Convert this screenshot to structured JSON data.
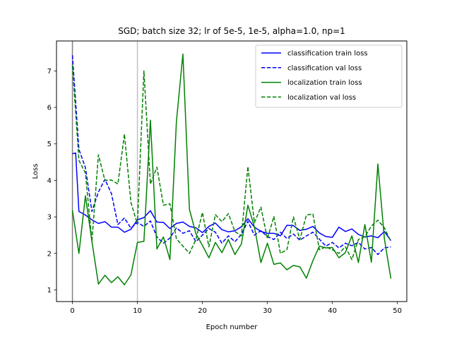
{
  "chart_data": {
    "type": "line",
    "title": "SGD; batch size 32; lr of 5e-5, 1e-5, alpha=1.0, np=1",
    "xlabel": "Epoch number",
    "ylabel": "Loss",
    "xlim": [
      -2.45,
      51.45
    ],
    "ylim": [
      0.68,
      7.82
    ],
    "xticks": [
      0,
      10,
      20,
      30,
      40,
      50
    ],
    "yticks": [
      1,
      2,
      3,
      4,
      5,
      6,
      7
    ],
    "grid": false,
    "legend_position": "top-right",
    "vlines": [
      {
        "x": 0,
        "color": "#808080"
      },
      {
        "x": 10,
        "color": "#c0c0c0"
      }
    ],
    "series": [
      {
        "name": "classification train loss",
        "color": "#0000ff",
        "dash": "solid",
        "x": [
          0,
          0.5,
          1,
          2,
          3,
          4,
          5,
          6,
          7,
          8,
          9,
          10,
          11,
          12,
          13,
          14,
          15,
          16,
          17,
          18,
          19,
          20,
          21,
          22,
          23,
          24,
          25,
          26,
          27,
          28,
          29,
          30,
          31,
          32,
          33,
          34,
          35,
          36,
          37,
          38,
          39,
          40,
          41,
          42,
          43,
          44,
          45,
          46,
          47,
          48,
          49
        ],
        "values": [
          4.73,
          4.75,
          3.15,
          3.05,
          2.92,
          2.82,
          2.87,
          2.72,
          2.72,
          2.58,
          2.66,
          2.92,
          2.98,
          3.17,
          2.86,
          2.85,
          2.68,
          2.82,
          2.86,
          2.74,
          2.7,
          2.57,
          2.74,
          2.83,
          2.65,
          2.59,
          2.62,
          2.73,
          2.95,
          2.72,
          2.6,
          2.55,
          2.55,
          2.48,
          2.77,
          2.76,
          2.63,
          2.66,
          2.74,
          2.56,
          2.46,
          2.44,
          2.72,
          2.6,
          2.67,
          2.52,
          2.45,
          2.48,
          2.43,
          2.6,
          2.35
        ]
      },
      {
        "name": "classification val loss",
        "color": "#0000ff",
        "dash": "dashed",
        "x": [
          0,
          1,
          2,
          3,
          4,
          5,
          6,
          7,
          8,
          9,
          10,
          11,
          12,
          13,
          14,
          15,
          16,
          17,
          18,
          19,
          20,
          21,
          22,
          23,
          24,
          25,
          26,
          27,
          28,
          29,
          30,
          31,
          32,
          33,
          34,
          35,
          36,
          37,
          38,
          39,
          40,
          41,
          42,
          43,
          44,
          45,
          46,
          47,
          48,
          49
        ],
        "values": [
          7.43,
          4.85,
          4.35,
          3.15,
          3.68,
          4.03,
          3.64,
          2.79,
          2.97,
          2.69,
          2.85,
          2.74,
          2.89,
          2.45,
          2.28,
          2.42,
          2.7,
          2.55,
          2.62,
          2.32,
          2.5,
          2.68,
          2.58,
          2.28,
          2.48,
          2.32,
          2.52,
          2.88,
          2.5,
          2.62,
          2.46,
          2.38,
          2.58,
          2.41,
          2.53,
          2.36,
          2.48,
          2.58,
          2.39,
          2.2,
          2.3,
          2.15,
          2.28,
          2.21,
          2.3,
          2.12,
          2.16,
          1.97,
          2.15,
          2.18
        ]
      },
      {
        "name": "localization train loss",
        "color": "#008000",
        "dash": "solid",
        "x": [
          0,
          1,
          2,
          3,
          4,
          5,
          6,
          7,
          8,
          9,
          10,
          11,
          12,
          13,
          14,
          15,
          16,
          17,
          18,
          19,
          20,
          21,
          22,
          23,
          24,
          25,
          26,
          27,
          28,
          29,
          30,
          31,
          32,
          33,
          34,
          35,
          36,
          37,
          38,
          39,
          40,
          41,
          42,
          43,
          44,
          45,
          46,
          47,
          48,
          49
        ],
        "values": [
          3.18,
          2.0,
          3.58,
          2.33,
          1.16,
          1.4,
          1.2,
          1.36,
          1.14,
          1.41,
          2.3,
          2.33,
          5.65,
          2.12,
          2.45,
          1.83,
          5.61,
          7.46,
          3.21,
          2.54,
          2.22,
          1.88,
          2.3,
          2.02,
          2.38,
          1.97,
          2.26,
          3.32,
          2.73,
          1.75,
          2.28,
          1.7,
          1.74,
          1.55,
          1.67,
          1.63,
          1.32,
          1.8,
          2.2,
          2.15,
          2.16,
          1.88,
          2.02,
          2.48,
          1.75,
          2.79,
          1.76,
          4.45,
          2.4,
          1.31
        ]
      },
      {
        "name": "localization val loss",
        "color": "#008000",
        "dash": "dashed",
        "x": [
          0,
          1,
          2,
          3,
          4,
          5,
          6,
          7,
          8,
          9,
          10,
          11,
          12,
          13,
          14,
          15,
          16,
          17,
          18,
          19,
          20,
          21,
          22,
          23,
          24,
          25,
          26,
          27,
          28,
          29,
          30,
          31,
          32,
          33,
          34,
          35,
          36,
          37,
          38,
          39,
          40,
          41,
          42,
          43,
          44,
          45,
          46,
          47,
          48,
          49
        ],
        "values": [
          7.15,
          4.55,
          4.2,
          2.33,
          4.7,
          4.0,
          4.01,
          3.9,
          5.27,
          3.4,
          2.8,
          7.0,
          3.9,
          4.36,
          3.32,
          3.36,
          2.4,
          2.2,
          2.0,
          2.38,
          3.12,
          2.18,
          3.06,
          2.87,
          3.09,
          2.6,
          2.48,
          4.38,
          2.84,
          3.27,
          2.4,
          3.01,
          2.0,
          2.1,
          3.0,
          2.38,
          3.05,
          3.08,
          2.1,
          2.18,
          2.1,
          2.0,
          2.18,
          1.83,
          2.38,
          2.46,
          2.75,
          2.91,
          2.7,
          2.33
        ]
      }
    ]
  }
}
